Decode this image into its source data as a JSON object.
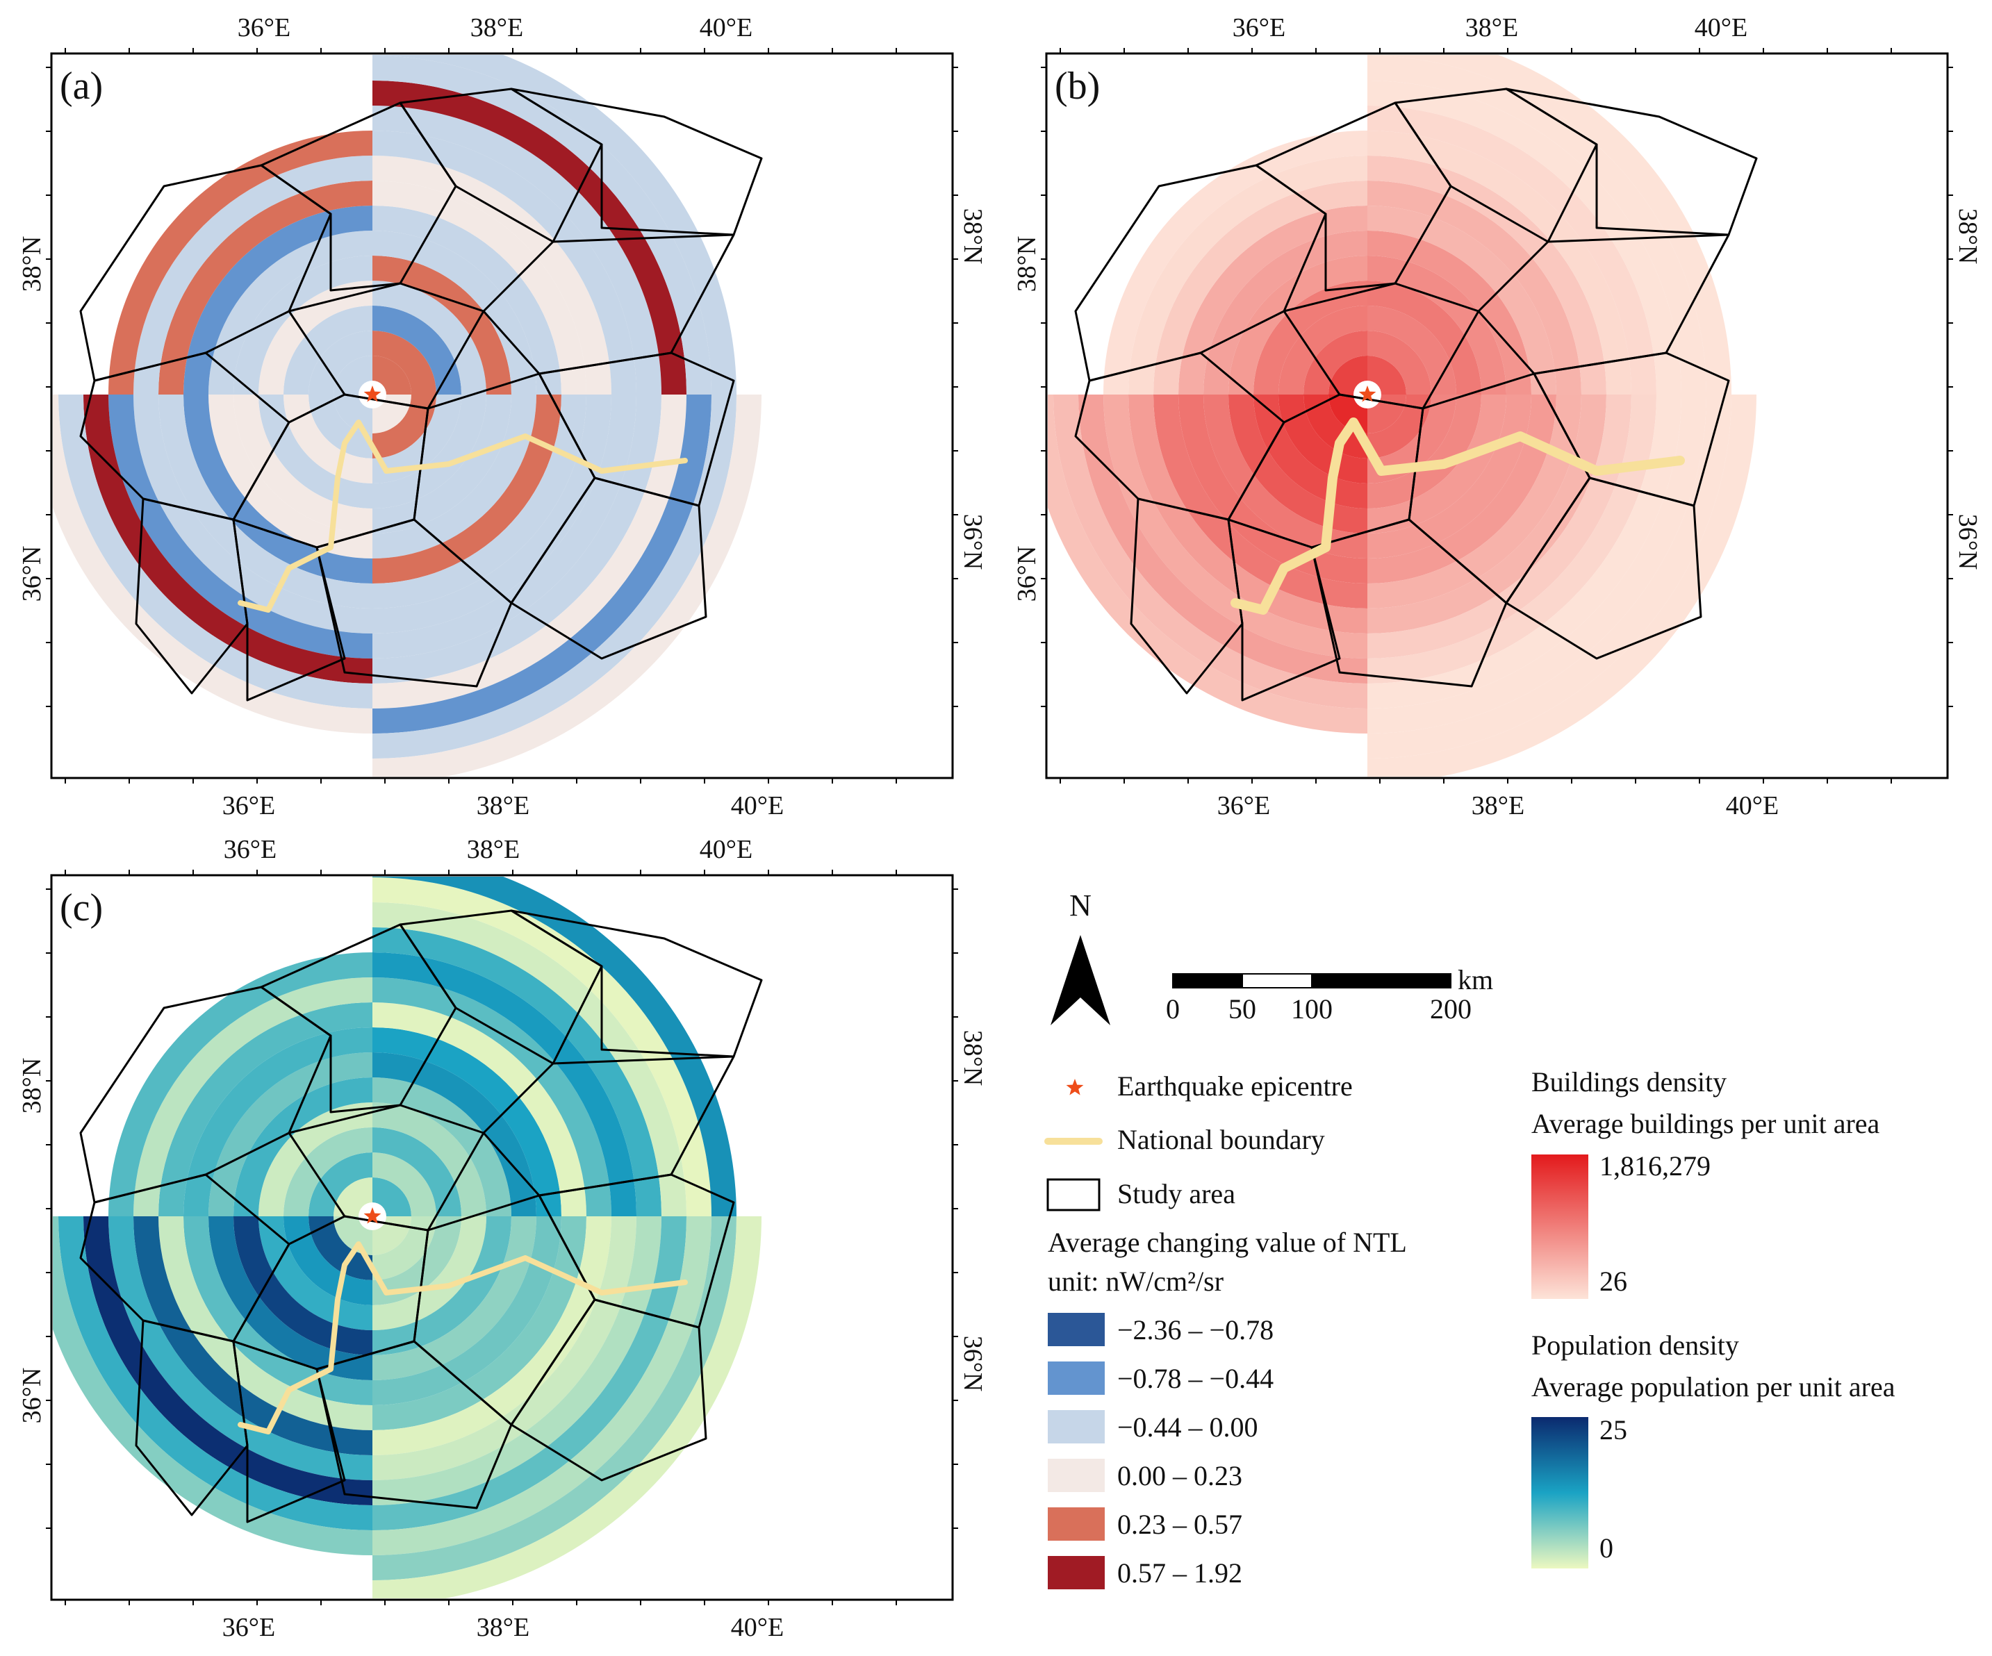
{
  "figure": {
    "panels": [
      {
        "id": "a",
        "label": "(a)",
        "theme": "ntl",
        "top_lon_labels": [
          "36°E",
          "38°E",
          "40°E"
        ],
        "bottom_lon_labels": [
          "36°E",
          "38°E",
          "40°E"
        ],
        "left_lat_labels": [
          "38°N",
          "36°N"
        ],
        "right_lat_labels": [
          "38°N",
          "36°N"
        ]
      },
      {
        "id": "b",
        "label": "(b)",
        "theme": "buildings",
        "top_lon_labels": [
          "36°E",
          "38°E",
          "40°E"
        ],
        "bottom_lon_labels": [
          "36°E",
          "38°E",
          "40°E"
        ],
        "left_lat_labels": [
          "38°N",
          "36°N"
        ],
        "right_lat_labels": [
          "38°N",
          "36°N"
        ]
      },
      {
        "id": "c",
        "label": "(c)",
        "theme": "population",
        "top_lon_labels": [
          "36°E",
          "38°E",
          "40°E"
        ],
        "bottom_lon_labels": [
          "36°E",
          "38°E",
          "40°E"
        ],
        "left_lat_labels": [
          "38°N",
          "36°N"
        ],
        "right_lat_labels": [
          "38°N",
          "36°N"
        ]
      }
    ],
    "north_arrow": {
      "label": "N"
    },
    "scale_bar": {
      "unit": "km",
      "ticks": [
        "0",
        "50",
        "100",
        "200"
      ]
    },
    "legend": {
      "epicentre": "Earthquake epicentre",
      "national_boundary": "National boundary",
      "study_area": "Study area",
      "ntl_title": "Average changing value of NTL",
      "ntl_unit": "unit: nW/cm²/sr",
      "ntl_classes": [
        {
          "range": "−2.36 – −0.78",
          "color": "#2b5797"
        },
        {
          "range": "−0.78 – −0.44",
          "color": "#6394cf"
        },
        {
          "range": "−0.44 – 0.00",
          "color": "#c6d6e8"
        },
        {
          "range": "0.00 – 0.23",
          "color": "#f3e9e5"
        },
        {
          "range": "0.23 – 0.57",
          "color": "#d9705a"
        },
        {
          "range": "0.57 – 1.92",
          "color": "#a01b24"
        }
      ],
      "buildings_title": "Buildings density",
      "buildings_subtitle": "Average buildings per unit area",
      "buildings_max": "1,816,279",
      "buildings_min": "26",
      "buildings_colors": [
        "#e31a1c",
        "#fde3d8"
      ],
      "population_title": "Population  density",
      "population_subtitle": "Average population per unit area",
      "population_max": "25",
      "population_min": "0",
      "population_colors": [
        "#0b2a6f",
        "#1aa3c4",
        "#edf8c0"
      ],
      "epicentre_color": "#ee4d1a",
      "boundary_color": "#f7e09a"
    }
  }
}
